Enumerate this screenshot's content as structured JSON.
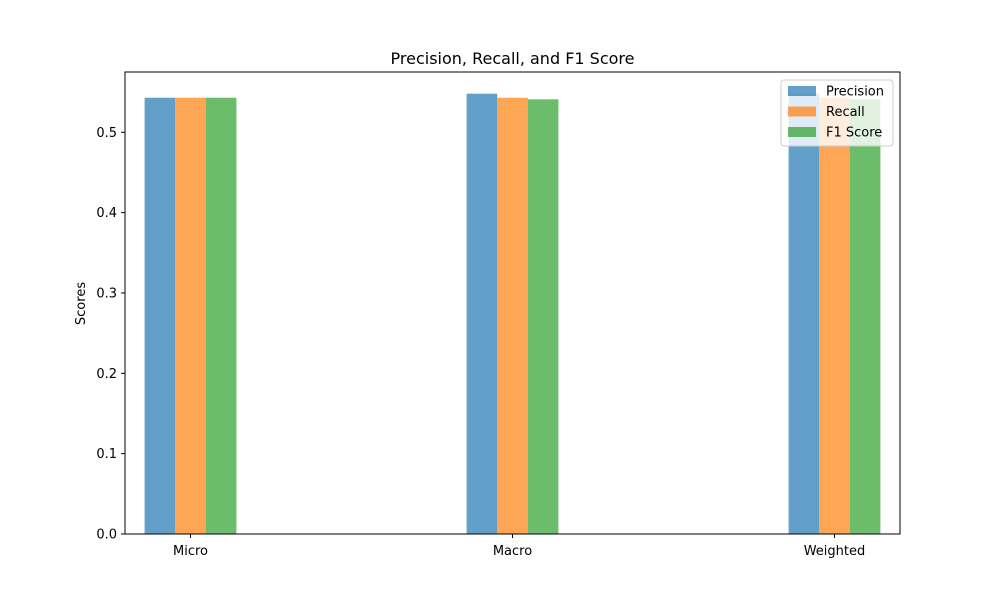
{
  "chart_data": {
    "type": "bar",
    "title": "Precision, Recall, and F1 Score",
    "xlabel": "",
    "ylabel": "Scores",
    "categories": [
      "Micro",
      "Macro",
      "Weighted"
    ],
    "series": [
      {
        "name": "Precision",
        "values": [
          0.543,
          0.548,
          0.548
        ],
        "color": "#1f77b4"
      },
      {
        "name": "Recall",
        "values": [
          0.543,
          0.543,
          0.543
        ],
        "color": "#ff7f0e"
      },
      {
        "name": "F1 Score",
        "values": [
          0.543,
          0.541,
          0.541
        ],
        "color": "#2ca02c"
      }
    ],
    "bar_alpha": 0.7,
    "ylim": [
      0,
      0.575
    ],
    "yticks": [
      "0.0",
      "0.1",
      "0.2",
      "0.3",
      "0.4",
      "0.5"
    ],
    "grid": false,
    "legend_position": "upper right"
  }
}
